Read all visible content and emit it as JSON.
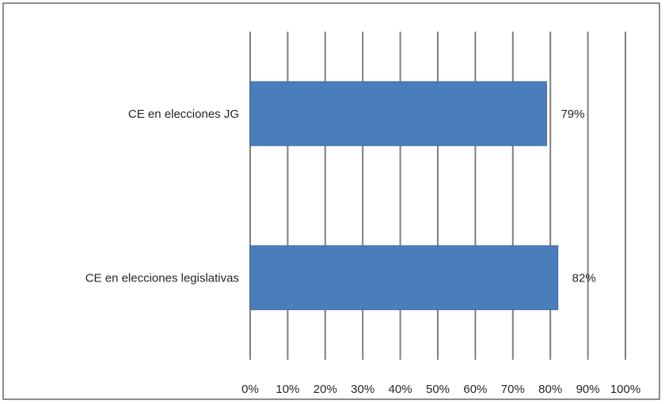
{
  "chart_data": {
    "type": "bar",
    "orientation": "horizontal",
    "title": "",
    "xlabel": "",
    "ylabel": "",
    "categories": [
      "CE en elecciones JG",
      "CE en elecciones legislativas"
    ],
    "values": [
      79,
      82
    ],
    "data_labels": [
      "79%",
      "82%"
    ],
    "xlim": [
      0,
      100
    ],
    "x_ticks": [
      0,
      10,
      20,
      30,
      40,
      50,
      60,
      70,
      80,
      90,
      100
    ],
    "x_tick_labels": [
      "0%",
      "10%",
      "20%",
      "30%",
      "40%",
      "50%",
      "60%",
      "70%",
      "80%",
      "90%",
      "100%"
    ],
    "grid": "vertical",
    "legend": "none",
    "bar_color": "#4a7ebb",
    "bar_border_color": "#3c6aa3",
    "grid_color": "#7f7f7f"
  }
}
